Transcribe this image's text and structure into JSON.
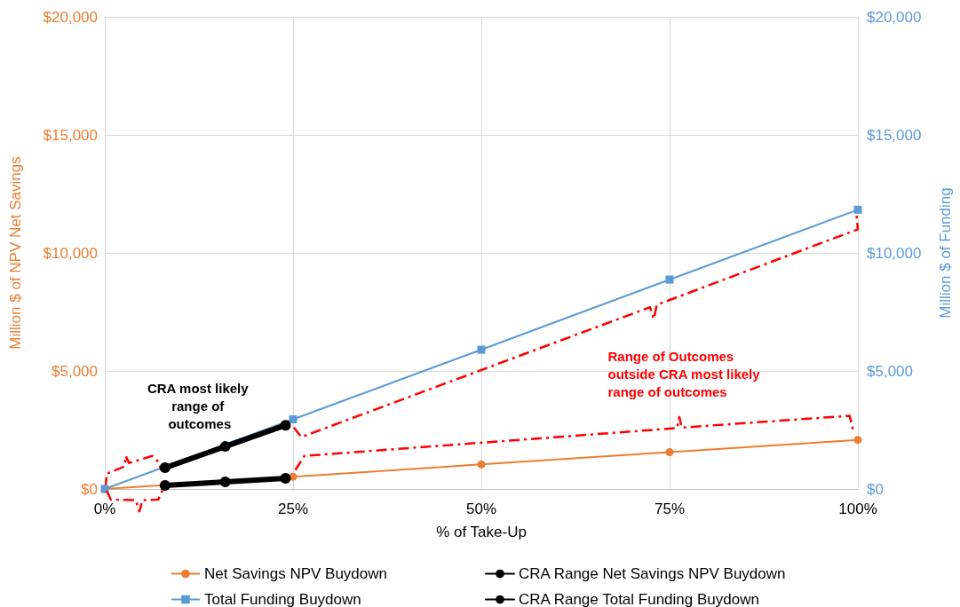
{
  "chart_data": {
    "type": "line",
    "xlabel": "% of Take-Up",
    "ylabel": "Million $ of NPV Net Savings",
    "y2label": "Million $ of Funding",
    "x": [
      0,
      25,
      50,
      75,
      100
    ],
    "series": [
      {
        "name": "Net Savings NPV Buydown",
        "color": "#ed7d31",
        "values": [
          0,
          520,
          1040,
          1560,
          2080
        ],
        "marker": "circle"
      },
      {
        "name": "CRA Range Net Savings NPV Buydown",
        "color": "#000000",
        "x": [
          8,
          16,
          24
        ],
        "values": [
          150,
          300,
          450
        ],
        "marker": "circle"
      },
      {
        "name": "Total Funding Buydown",
        "color": "#5b9bd5",
        "values": [
          0,
          2950,
          5900,
          8870,
          11830
        ],
        "marker": "square",
        "axis": "y2"
      },
      {
        "name": "CRA Range Total Funding Buydown",
        "color": "#000000",
        "x": [
          8,
          16,
          24
        ],
        "values": [
          900,
          1800,
          2700
        ],
        "marker": "circle",
        "axis": "y2"
      },
      {
        "color": "#ff0000",
        "x": [
          25.1,
          26.1,
          72.4,
          72.9,
          73.3,
          100,
          99.8
        ],
        "values": [
          2600,
          2200,
          7700,
          7200,
          7800,
          11000,
          11650
        ],
        "marker": "none",
        "line_style": "dashed"
      },
      {
        "color": "#ff0000",
        "x": [
          25.3,
          26.5,
          76,
          76.3,
          76.6,
          98.9,
          99.4
        ],
        "values": [
          800,
          1400,
          2580,
          3050,
          2600,
          3100,
          2450
        ],
        "marker": "none",
        "line_style": "dashed"
      },
      {
        "color": "#ff0000",
        "x": [
          0.1,
          0.25,
          2.6,
          2.8,
          3.2,
          6.3,
          7.1,
          7.5
        ],
        "values": [
          50,
          650,
          950,
          1400,
          1100,
          1400,
          1150,
          800
        ],
        "marker": "none",
        "line_style": "dashed"
      }
    ],
    "annotations": [
      "CRA most likely range of outcomes",
      "Range of Outcomes outside CRA most likely range of outcomes"
    ],
    "xlim": [
      0,
      100
    ],
    "xticks": [
      {
        "value": 0,
        "label": "0%"
      },
      {
        "value": 25,
        "label": "25%"
      },
      {
        "value": 50,
        "label": "50%"
      },
      {
        "value": 75,
        "label": "75%"
      },
      {
        "value": 100,
        "label": "100%"
      }
    ],
    "ylim": [
      0,
      20000
    ],
    "yticks": [
      {
        "value": 0,
        "label": "$0"
      },
      {
        "value": 5000,
        "label": "$5,000"
      },
      {
        "value": 10000,
        "label": "$10,000"
      },
      {
        "value": 15000,
        "label": "$15,000"
      },
      {
        "value": 20000,
        "label": "$20,000"
      }
    ],
    "y2lim": [
      0,
      20000
    ],
    "y2ticks": [
      {
        "value": 0,
        "label": "$0"
      },
      {
        "value": 5000,
        "label": "$5,000"
      },
      {
        "value": 10000,
        "label": "$10,000"
      },
      {
        "value": 15000,
        "label": "$15,000"
      },
      {
        "value": 20000,
        "label": "$20,000"
      }
    ],
    "grid": true,
    "legend": "bottom",
    "line_style": "solid"
  }
}
